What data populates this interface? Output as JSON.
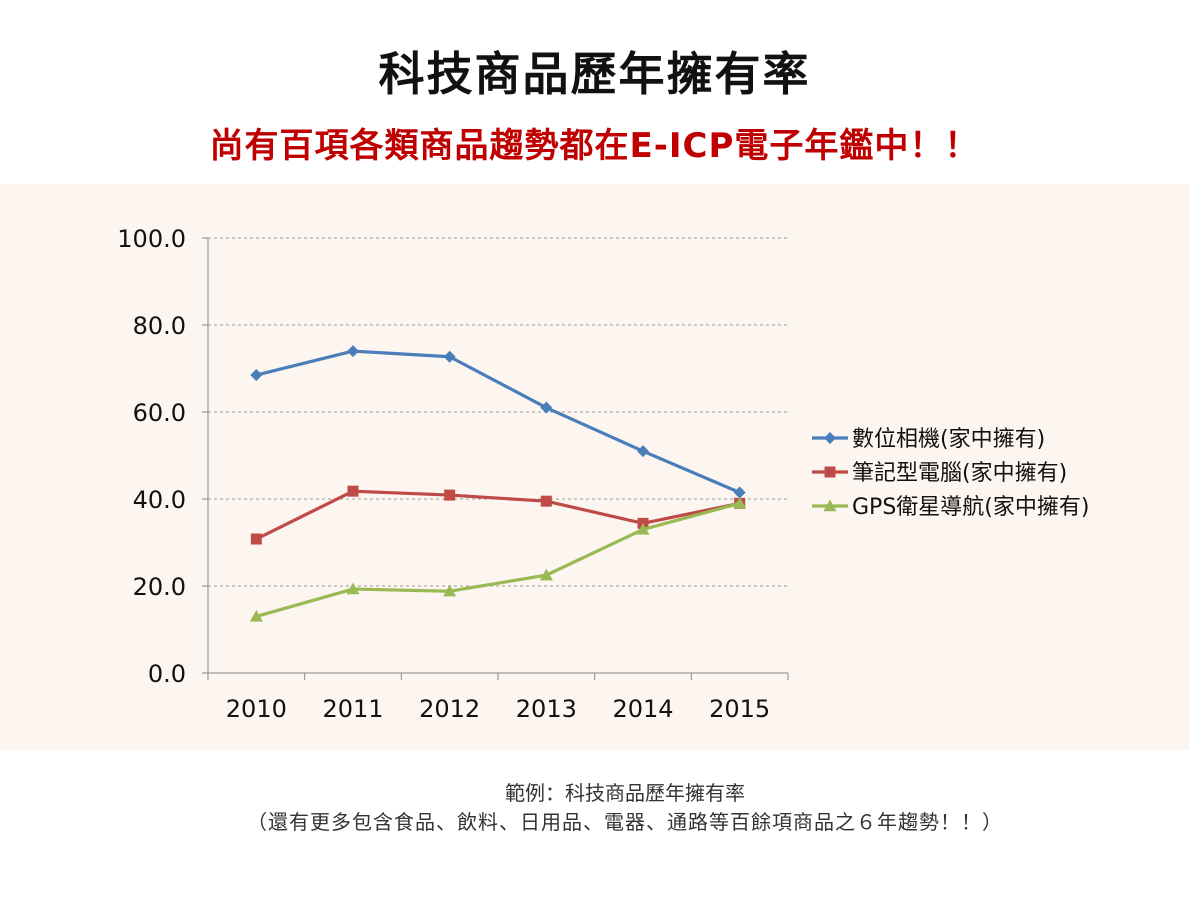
{
  "header": {
    "title": "科技商品歷年擁有率",
    "subtitle": "尚有百項各類商品趨勢都在E-ICP電子年鑑中！！"
  },
  "footer": {
    "caption_line1": "範例：科技商品歷年擁有率",
    "caption_line2": "（還有更多包含食品、飲料、日用品、電器、通路等百餘項商品之６年趨勢！！）"
  },
  "chart_data": {
    "type": "line",
    "title": "",
    "xlabel": "",
    "ylabel": "",
    "categories": [
      "2010",
      "2011",
      "2012",
      "2013",
      "2014",
      "2015"
    ],
    "ylim": [
      0,
      100
    ],
    "yticks": [
      "0.0",
      "20.0",
      "40.0",
      "60.0",
      "80.0",
      "100.0"
    ],
    "grid": "horizontal-dashed",
    "legend_position": "right",
    "series": [
      {
        "name": "數位相機(家中擁有)",
        "values": [
          68.5,
          74.0,
          72.7,
          61.0,
          51.0,
          41.5
        ],
        "color": "#4a7ebb",
        "marker": "diamond"
      },
      {
        "name": "筆記型電腦(家中擁有)",
        "values": [
          30.8,
          41.8,
          40.9,
          39.5,
          34.4,
          39.0
        ],
        "color": "#be4b48",
        "marker": "square"
      },
      {
        "name": "GPS衛星導航(家中擁有)",
        "values": [
          13.0,
          19.3,
          18.8,
          22.5,
          33.0,
          39.0
        ],
        "color": "#98b954",
        "marker": "triangle"
      }
    ]
  }
}
